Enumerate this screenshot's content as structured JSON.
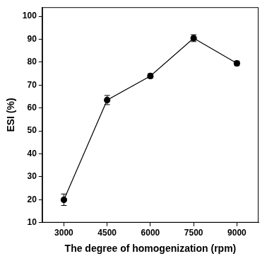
{
  "chart_data": {
    "type": "line",
    "x_label": "The degree of homogenization (rpm)",
    "y_label": "ESI (%)",
    "categories": [
      "3000",
      "4500",
      "6000",
      "7500",
      "9000"
    ],
    "values": [
      20,
      63.5,
      74,
      90.5,
      79.5
    ],
    "errors": [
      2.5,
      2,
      1,
      1.5,
      1
    ],
    "color": "#000000",
    "marker": "circle",
    "line_style": "solid",
    "ylim": [
      10,
      104
    ],
    "yticks": [
      10,
      20,
      30,
      40,
      50,
      60,
      70,
      80,
      90,
      100
    ],
    "grid": false
  }
}
